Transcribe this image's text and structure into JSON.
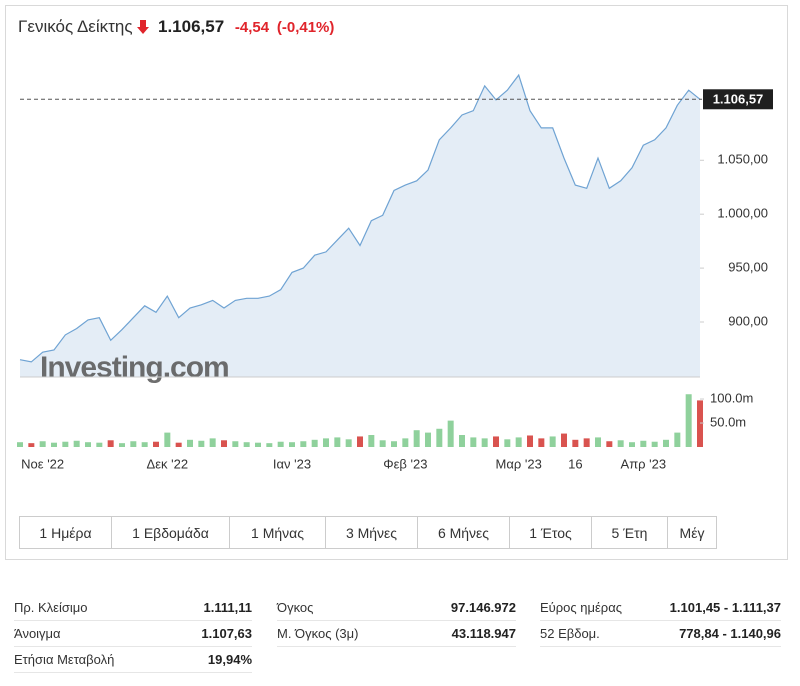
{
  "header": {
    "title": "Γενικός Δείκτης",
    "price": "1.106,57",
    "change": "-4,54",
    "change_pct": "(-0,41%)"
  },
  "watermark": "Investing.com",
  "chart_data": [
    {
      "type": "area",
      "color": "#6fa3d3",
      "fill": "#e4edf6",
      "categories": [
        null,
        null,
        "Νοε '22",
        null,
        null,
        null,
        null,
        null,
        null,
        null,
        null,
        null,
        null,
        "Δεκ '22",
        null,
        null,
        null,
        null,
        null,
        null,
        null,
        null,
        null,
        null,
        "Ιαν '23",
        null,
        null,
        null,
        null,
        null,
        null,
        null,
        null,
        null,
        "Φεβ '23",
        null,
        null,
        null,
        null,
        null,
        null,
        null,
        null,
        null,
        "Μαρ '23",
        null,
        null,
        null,
        null,
        "16",
        null,
        null,
        null,
        null,
        null,
        "Απρ '23",
        null,
        null,
        null,
        null,
        null
      ],
      "values": [
        865,
        863,
        872,
        874,
        888,
        894,
        902,
        904,
        883,
        893,
        904,
        915,
        909,
        924,
        904,
        913,
        916,
        920,
        913,
        920,
        922,
        922,
        924,
        930,
        946,
        950,
        962,
        965,
        976,
        987,
        971,
        994,
        999,
        1022,
        1027,
        1031,
        1041,
        1069,
        1080,
        1092,
        1096,
        1119,
        1106,
        1115,
        1129,
        1096,
        1080,
        1080,
        1052,
        1027,
        1024,
        1052,
        1024,
        1031,
        1043,
        1064,
        1069,
        1080,
        1101,
        1115,
        1106.57
      ],
      "ylim": [
        849,
        1143
      ],
      "yticks": [
        {
          "value": 900,
          "label": "900,00"
        },
        {
          "value": 950,
          "label": "950,00"
        },
        {
          "value": 1000,
          "label": "1.000,00"
        },
        {
          "value": 1050,
          "label": "1.050,00"
        }
      ]
    },
    {
      "type": "bar",
      "up_color": "#8fd19c",
      "down_color": "#d9534f",
      "values": [
        10,
        8,
        12,
        9,
        11,
        13,
        10,
        9,
        14,
        8,
        12,
        10,
        11,
        30,
        9,
        15,
        13,
        18,
        14,
        12,
        10,
        9,
        8,
        11,
        10,
        12,
        15,
        18,
        20,
        16,
        22,
        25,
        14,
        12,
        18,
        35,
        30,
        38,
        55,
        25,
        20,
        18,
        22,
        16,
        20,
        24,
        18,
        22,
        28,
        15,
        18,
        20,
        12,
        14,
        10,
        13,
        11,
        15,
        30,
        110,
        97.15
      ],
      "ylim": [
        0,
        123
      ],
      "yticks": [
        {
          "value": 50,
          "label": "50.0m"
        },
        {
          "value": 100,
          "label": "100.0m"
        }
      ]
    }
  ],
  "ranges": [
    "1 Ημέρα",
    "1 Εβδομάδα",
    "1 Μήνας",
    "3 Μήνες",
    "6 Μήνες",
    "1 Έτος",
    "5 Έτη",
    "Μέγ"
  ],
  "stats": [
    [
      {
        "label": "Πρ. Κλείσιμο",
        "value": "1.111,11"
      },
      {
        "label": "Άνοιγμα",
        "value": "1.107,63"
      },
      {
        "label": "Ετήσια Μεταβολή",
        "value": "19,94%"
      }
    ],
    [
      {
        "label": "Όγκος",
        "value": "97.146.972"
      },
      {
        "label": "Μ. Όγκος (3μ)",
        "value": "43.118.947"
      }
    ],
    [
      {
        "label": "Εύρος ημέρας",
        "value": "1.101,45 - 1.111,37"
      },
      {
        "label": "52 Εβδομ.",
        "value": "778,84 - 1.140,96"
      }
    ]
  ]
}
